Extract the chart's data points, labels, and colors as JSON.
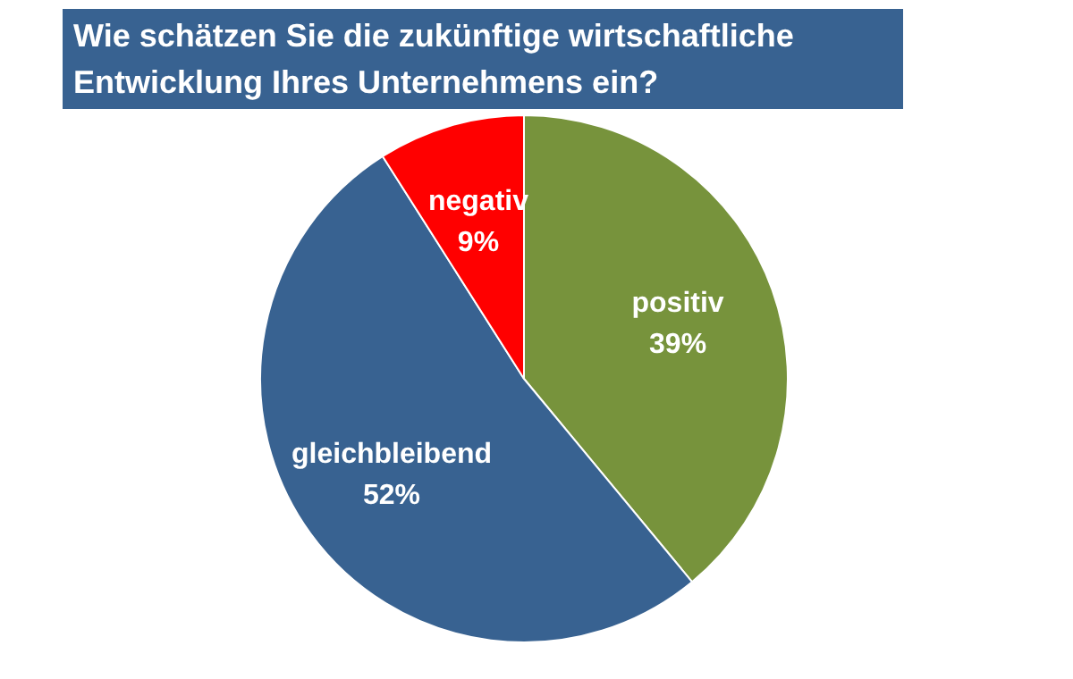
{
  "chart_data": {
    "type": "pie",
    "title": "Wie schätzen Sie die zukünftige wirtschaftliche Entwicklung Ihres Unternehmens ein?",
    "categories": [
      "positiv",
      "gleichbleibend",
      "negativ"
    ],
    "values": [
      39,
      52,
      9
    ],
    "colors": [
      "#77933c",
      "#386291",
      "#ff0000"
    ],
    "value_labels": [
      "39%",
      "52%",
      "9%"
    ],
    "legend": false
  }
}
